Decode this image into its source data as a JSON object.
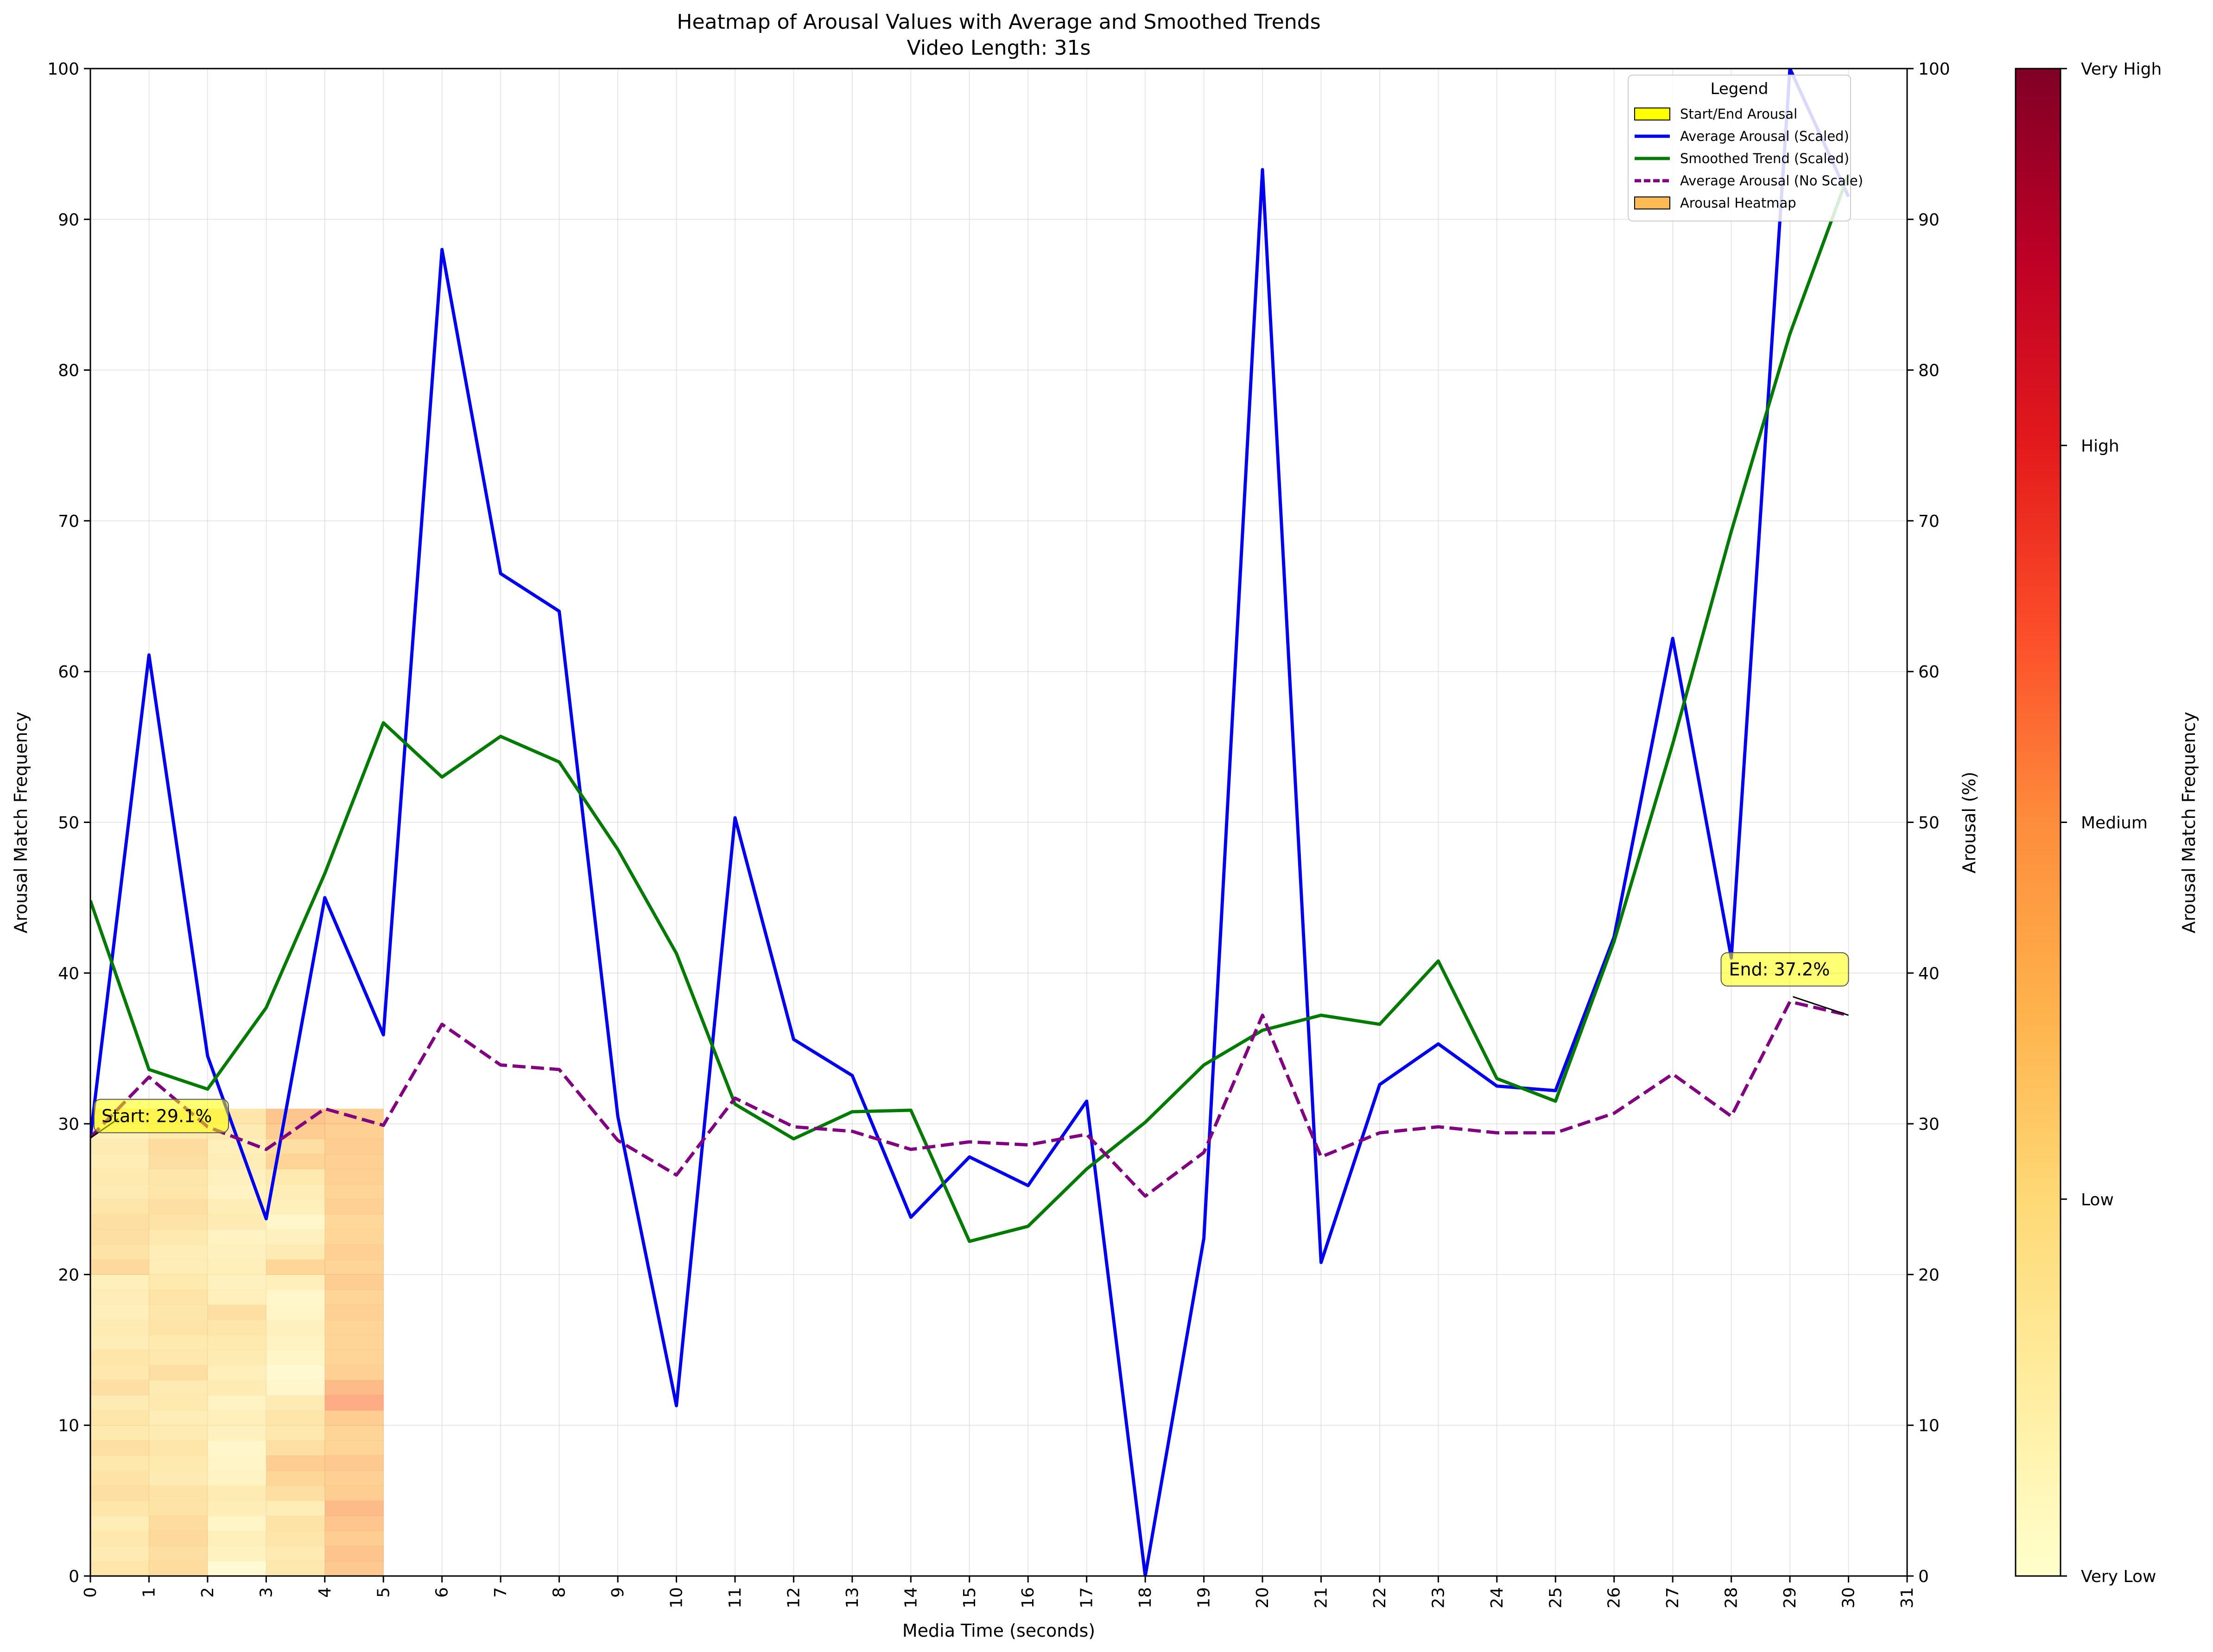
{
  "chart_data": {
    "type": "line",
    "title": "Heatmap of Arousal Values with Average and Smoothed Trends",
    "subtitle": "Video Length: 31s",
    "xlabel": "Media Time (seconds)",
    "ylabel_left": "Arousal Match Frequency",
    "ylabel_right": "Arousal (%)",
    "xlim": [
      0,
      31
    ],
    "ylim": [
      0,
      100
    ],
    "x_ticks": [
      0,
      1,
      2,
      3,
      4,
      5,
      6,
      7,
      8,
      9,
      10,
      11,
      12,
      13,
      14,
      15,
      16,
      17,
      18,
      19,
      20,
      21,
      22,
      23,
      24,
      25,
      26,
      27,
      28,
      29,
      30,
      31
    ],
    "y_ticks": [
      0,
      10,
      20,
      30,
      40,
      50,
      60,
      70,
      80,
      90,
      100
    ],
    "grid": true,
    "x": [
      0,
      1,
      2,
      3,
      4,
      5,
      6,
      7,
      8,
      9,
      10,
      11,
      12,
      13,
      14,
      15,
      16,
      17,
      18,
      19,
      20,
      21,
      22,
      23,
      24,
      25,
      26,
      27,
      28,
      29,
      30
    ],
    "series": [
      {
        "name": "Average Arousal (Scaled)",
        "color": "#0000ee",
        "style": "solid",
        "values": [
          29.1,
          61.1,
          34.5,
          23.7,
          45.0,
          35.9,
          88.0,
          66.5,
          64.0,
          30.5,
          11.3,
          50.3,
          35.6,
          33.2,
          23.8,
          27.8,
          25.9,
          31.5,
          0.0,
          22.4,
          93.3,
          20.8,
          32.6,
          35.3,
          32.5,
          32.2,
          42.4,
          62.2,
          41.0,
          100.0,
          91.5
        ]
      },
      {
        "name": "Smoothed Trend (Scaled)",
        "color": "#007a00",
        "style": "solid",
        "values": [
          44.8,
          33.6,
          32.3,
          37.7,
          46.6,
          56.6,
          53.0,
          55.7,
          54.0,
          48.2,
          41.3,
          31.3,
          29.0,
          30.8,
          30.9,
          22.2,
          23.2,
          27.0,
          30.1,
          33.9,
          36.2,
          37.2,
          36.6,
          40.8,
          33.0,
          31.5,
          42.1,
          55.2,
          69.3,
          82.4,
          93.0
        ]
      },
      {
        "name": "Average Arousal (No Scale)",
        "color": "#800080",
        "style": "dashed",
        "values": [
          29.1,
          33.1,
          29.8,
          28.3,
          31.0,
          29.9,
          36.6,
          33.9,
          33.6,
          28.9,
          26.6,
          31.7,
          29.8,
          29.5,
          28.3,
          28.8,
          28.6,
          29.3,
          25.2,
          28.1,
          37.2,
          27.8,
          29.4,
          29.8,
          29.4,
          29.4,
          30.7,
          33.3,
          30.5,
          38.1,
          37.2
        ]
      }
    ],
    "heatmap": {
      "name": "Arousal Heatmap",
      "x_range": [
        0,
        5
      ],
      "y_range": [
        0,
        31
      ],
      "rows": 31,
      "cols": 5,
      "intensity": [
        [
          0.27,
          0.32,
          0.06,
          0.25,
          0.42
        ],
        [
          0.22,
          0.3,
          0.15,
          0.22,
          0.45
        ],
        [
          0.25,
          0.33,
          0.18,
          0.26,
          0.4
        ],
        [
          0.2,
          0.32,
          0.12,
          0.28,
          0.44
        ],
        [
          0.26,
          0.28,
          0.2,
          0.2,
          0.5
        ],
        [
          0.3,
          0.28,
          0.22,
          0.3,
          0.4
        ],
        [
          0.28,
          0.22,
          0.14,
          0.35,
          0.38
        ],
        [
          0.25,
          0.24,
          0.12,
          0.4,
          0.42
        ],
        [
          0.3,
          0.26,
          0.1,
          0.3,
          0.36
        ],
        [
          0.24,
          0.22,
          0.16,
          0.25,
          0.36
        ],
        [
          0.26,
          0.2,
          0.18,
          0.26,
          0.4
        ],
        [
          0.22,
          0.24,
          0.14,
          0.22,
          0.55
        ],
        [
          0.3,
          0.22,
          0.22,
          0.1,
          0.5
        ],
        [
          0.25,
          0.3,
          0.18,
          0.08,
          0.38
        ],
        [
          0.26,
          0.25,
          0.22,
          0.12,
          0.36
        ],
        [
          0.2,
          0.24,
          0.24,
          0.14,
          0.36
        ],
        [
          0.22,
          0.28,
          0.26,
          0.16,
          0.36
        ],
        [
          0.18,
          0.26,
          0.3,
          0.12,
          0.38
        ],
        [
          0.2,
          0.28,
          0.18,
          0.1,
          0.36
        ],
        [
          0.18,
          0.24,
          0.16,
          0.18,
          0.4
        ],
        [
          0.33,
          0.2,
          0.18,
          0.35,
          0.36
        ],
        [
          0.28,
          0.2,
          0.16,
          0.22,
          0.38
        ],
        [
          0.3,
          0.24,
          0.14,
          0.16,
          0.35
        ],
        [
          0.3,
          0.28,
          0.22,
          0.1,
          0.34
        ],
        [
          0.26,
          0.3,
          0.2,
          0.18,
          0.38
        ],
        [
          0.22,
          0.26,
          0.14,
          0.2,
          0.36
        ],
        [
          0.24,
          0.26,
          0.16,
          0.24,
          0.38
        ],
        [
          0.2,
          0.3,
          0.2,
          0.36,
          0.38
        ],
        [
          0.22,
          0.32,
          0.18,
          0.3,
          0.4
        ],
        [
          0.18,
          0.24,
          0.22,
          0.4,
          0.38
        ],
        [
          0.24,
          0.26,
          0.26,
          0.44,
          0.4
        ]
      ]
    },
    "annotations": [
      {
        "text": "Start: 29.1%",
        "x": 0,
        "y": 29.1
      },
      {
        "text": "End: 37.2%",
        "x": 30,
        "y": 37.2
      }
    ],
    "legend": {
      "title": "Legend",
      "placement": "top-right",
      "entries": [
        "Start/End Arousal",
        "Average Arousal (Scaled)",
        "Smoothed Trend (Scaled)",
        "Average Arousal (No Scale)",
        "Arousal Heatmap"
      ]
    },
    "colorbar": {
      "label": "Arousal Match Frequency",
      "tick_labels": [
        "Very Low",
        "Low",
        "Medium",
        "High",
        "Very High"
      ]
    }
  }
}
